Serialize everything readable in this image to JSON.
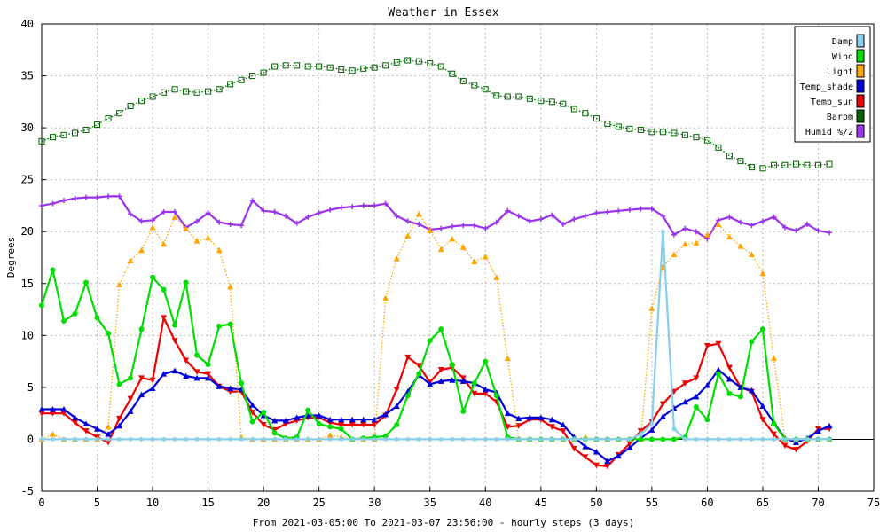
{
  "chart_data": {
    "type": "line",
    "title": "Weather in Essex",
    "xlabel": "From 2021-03-05:00 To 2021-03-07 23:56:00 - hourly steps (3 days)",
    "ylabel": "Degrees",
    "xlim": [
      0,
      75
    ],
    "ylim": [
      -5,
      40
    ],
    "x_ticks": [
      0,
      5,
      10,
      15,
      20,
      25,
      30,
      35,
      40,
      45,
      50,
      55,
      60,
      65,
      70,
      75
    ],
    "y_ticks": [
      -5,
      0,
      5,
      10,
      15,
      20,
      25,
      30,
      35,
      40
    ],
    "grid": true,
    "legend_position": "top-right",
    "x": [
      0,
      1,
      2,
      3,
      4,
      5,
      6,
      7,
      8,
      9,
      10,
      11,
      12,
      13,
      14,
      15,
      16,
      17,
      18,
      19,
      20,
      21,
      22,
      23,
      24,
      25,
      26,
      27,
      28,
      29,
      30,
      31,
      32,
      33,
      34,
      35,
      36,
      37,
      38,
      39,
      40,
      41,
      42,
      43,
      44,
      45,
      46,
      47,
      48,
      49,
      50,
      51,
      52,
      53,
      54,
      55,
      56,
      57,
      58,
      59,
      60,
      61,
      62,
      63,
      64,
      65,
      66,
      67,
      68,
      69,
      70,
      71
    ],
    "series": [
      {
        "name": "Damp",
        "color": "#87ceeb",
        "marker": "star",
        "style": "solid",
        "values": [
          0,
          0,
          0,
          0,
          0,
          0,
          0,
          0,
          0,
          0,
          0,
          0,
          0,
          0,
          0,
          0,
          0,
          0,
          0,
          0,
          0,
          0,
          0,
          0,
          0,
          0,
          0,
          0,
          0,
          0,
          0,
          0,
          0,
          0,
          0,
          0,
          0,
          0,
          0,
          0,
          0,
          0,
          0,
          0,
          0,
          0,
          0,
          0,
          0,
          0,
          0,
          0,
          0,
          0,
          0.5,
          1.5,
          20,
          1,
          0,
          0,
          0,
          0,
          0,
          0,
          0,
          0,
          0,
          0,
          0,
          0,
          0,
          0
        ]
      },
      {
        "name": "Wind",
        "color": "#00dd00",
        "marker": "circle",
        "style": "solid",
        "values": [
          12.9,
          16.3,
          11.4,
          12.1,
          15.1,
          11.7,
          10.2,
          5.3,
          5.9,
          10.6,
          15.6,
          14.4,
          11.0,
          15.1,
          8.1,
          7.2,
          10.9,
          11.1,
          5.4,
          1.7,
          2.6,
          0.6,
          0.1,
          0.2,
          2.8,
          1.5,
          1.2,
          1.0,
          0.0,
          0.1,
          0.2,
          0.3,
          1.4,
          4.2,
          6.3,
          9.5,
          10.6,
          7.2,
          2.7,
          5.4,
          7.5,
          4.2,
          0.2,
          0,
          0,
          0,
          0,
          0,
          0,
          0,
          0,
          0,
          0,
          0,
          0,
          0,
          0,
          0,
          0.2,
          3.1,
          1.9,
          6.3,
          4.4,
          4.1,
          9.4,
          10.6,
          1.5,
          0,
          0,
          0,
          0,
          0
        ]
      },
      {
        "name": "Light",
        "color": "#ffa500",
        "marker": "triangle",
        "style": "dotted",
        "values": [
          0,
          0.5,
          0,
          0,
          0,
          0,
          1.2,
          14.9,
          17.2,
          18.2,
          20.4,
          18.8,
          21.4,
          20.3,
          19.1,
          19.4,
          18.2,
          14.7,
          0.2,
          0,
          0,
          0,
          0,
          0,
          0,
          0,
          0.4,
          0.2,
          0,
          0,
          0,
          13.6,
          17.4,
          19.6,
          21.7,
          20.1,
          18.3,
          19.3,
          18.5,
          17.1,
          17.6,
          15.6,
          7.8,
          0,
          0,
          0,
          0,
          0,
          0,
          0.2,
          0,
          0,
          0,
          0,
          0,
          12.6,
          16.6,
          17.8,
          18.8,
          18.9,
          19.7,
          20.7,
          19.5,
          18.6,
          17.8,
          16.0,
          7.8,
          0,
          0,
          0,
          0,
          0
        ]
      },
      {
        "name": "Temp_shade",
        "color": "#0000dd",
        "marker": "triangle",
        "style": "solid",
        "values": [
          2.9,
          2.9,
          2.9,
          2.1,
          1.5,
          1.0,
          0.5,
          1.3,
          2.7,
          4.3,
          4.9,
          6.3,
          6.6,
          6.1,
          5.9,
          5.9,
          5.1,
          4.9,
          4.8,
          3.3,
          2.3,
          1.8,
          1.8,
          2.1,
          2.3,
          2.3,
          1.9,
          1.9,
          1.9,
          1.9,
          1.9,
          2.4,
          3.2,
          4.6,
          6.2,
          5.3,
          5.6,
          5.7,
          5.6,
          5.4,
          4.8,
          4.5,
          2.5,
          2.0,
          2.1,
          2.1,
          1.9,
          1.4,
          0.2,
          -0.7,
          -1.2,
          -2.1,
          -1.6,
          -0.8,
          0.1,
          0.9,
          2.2,
          3.0,
          3.6,
          4.1,
          5.2,
          6.7,
          5.8,
          5.0,
          4.7,
          3.2,
          1.6,
          0.1,
          -0.3,
          0.1,
          0.8,
          1.3
        ]
      },
      {
        "name": "Temp_sun",
        "color": "#ee0000",
        "marker": "downtriangle",
        "style": "solid",
        "values": [
          2.5,
          2.5,
          2.5,
          1.6,
          0.8,
          0.2,
          -0.3,
          2.0,
          3.9,
          5.9,
          5.7,
          11.7,
          9.5,
          7.6,
          6.5,
          6.3,
          5.1,
          4.6,
          4.6,
          2.6,
          1.4,
          0.9,
          1.5,
          1.8,
          2.1,
          2.1,
          1.6,
          1.4,
          1.4,
          1.4,
          1.4,
          2.3,
          4.8,
          7.9,
          7.1,
          5.5,
          6.7,
          6.9,
          5.9,
          4.4,
          4.4,
          3.6,
          1.2,
          1.3,
          1.9,
          1.9,
          1.2,
          0.8,
          -0.9,
          -1.7,
          -2.5,
          -2.6,
          -1.5,
          -0.4,
          0.8,
          1.7,
          3.4,
          4.6,
          5.4,
          5.9,
          9.0,
          9.2,
          6.9,
          5.0,
          4.6,
          1.9,
          0.5,
          -0.6,
          -1.0,
          -0.2,
          1.0,
          1.0
        ]
      },
      {
        "name": "Barom",
        "color": "#006400",
        "marker": "square",
        "style": "dotted",
        "values": [
          28.7,
          29.1,
          29.3,
          29.5,
          29.8,
          30.3,
          30.9,
          31.4,
          32.1,
          32.6,
          33.0,
          33.4,
          33.7,
          33.5,
          33.4,
          33.5,
          33.7,
          34.2,
          34.6,
          35.0,
          35.3,
          35.9,
          36.0,
          36.0,
          35.9,
          35.9,
          35.8,
          35.6,
          35.5,
          35.7,
          35.8,
          36.0,
          36.3,
          36.5,
          36.4,
          36.2,
          35.9,
          35.2,
          34.5,
          34.1,
          33.7,
          33.1,
          33.0,
          33.0,
          32.8,
          32.6,
          32.5,
          32.3,
          31.8,
          31.4,
          30.9,
          30.4,
          30.1,
          29.9,
          29.8,
          29.6,
          29.6,
          29.5,
          29.3,
          29.1,
          28.8,
          28.1,
          27.3,
          26.8,
          26.2,
          26.1,
          26.4,
          26.4,
          26.5,
          26.4,
          26.4,
          26.5
        ]
      },
      {
        "name": "Humid_%/2",
        "color": "#9933ee",
        "marker": "cross",
        "style": "solid",
        "values": [
          22.5,
          22.7,
          23.0,
          23.2,
          23.3,
          23.3,
          23.4,
          23.4,
          21.7,
          21.0,
          21.1,
          21.9,
          21.9,
          20.4,
          21.0,
          21.8,
          20.9,
          20.7,
          20.6,
          23.0,
          22.0,
          21.9,
          21.5,
          20.8,
          21.4,
          21.8,
          22.1,
          22.3,
          22.4,
          22.5,
          22.5,
          22.7,
          21.5,
          21.0,
          20.7,
          20.2,
          20.3,
          20.5,
          20.6,
          20.6,
          20.3,
          20.9,
          22.0,
          21.5,
          21.0,
          21.2,
          21.6,
          20.7,
          21.2,
          21.5,
          21.8,
          21.9,
          22.0,
          22.1,
          22.2,
          22.2,
          21.5,
          19.7,
          20.3,
          20.0,
          19.3,
          21.1,
          21.4,
          20.9,
          20.6,
          21.0,
          21.4,
          20.4,
          20.1,
          20.7,
          20.1,
          19.9
        ]
      }
    ]
  }
}
